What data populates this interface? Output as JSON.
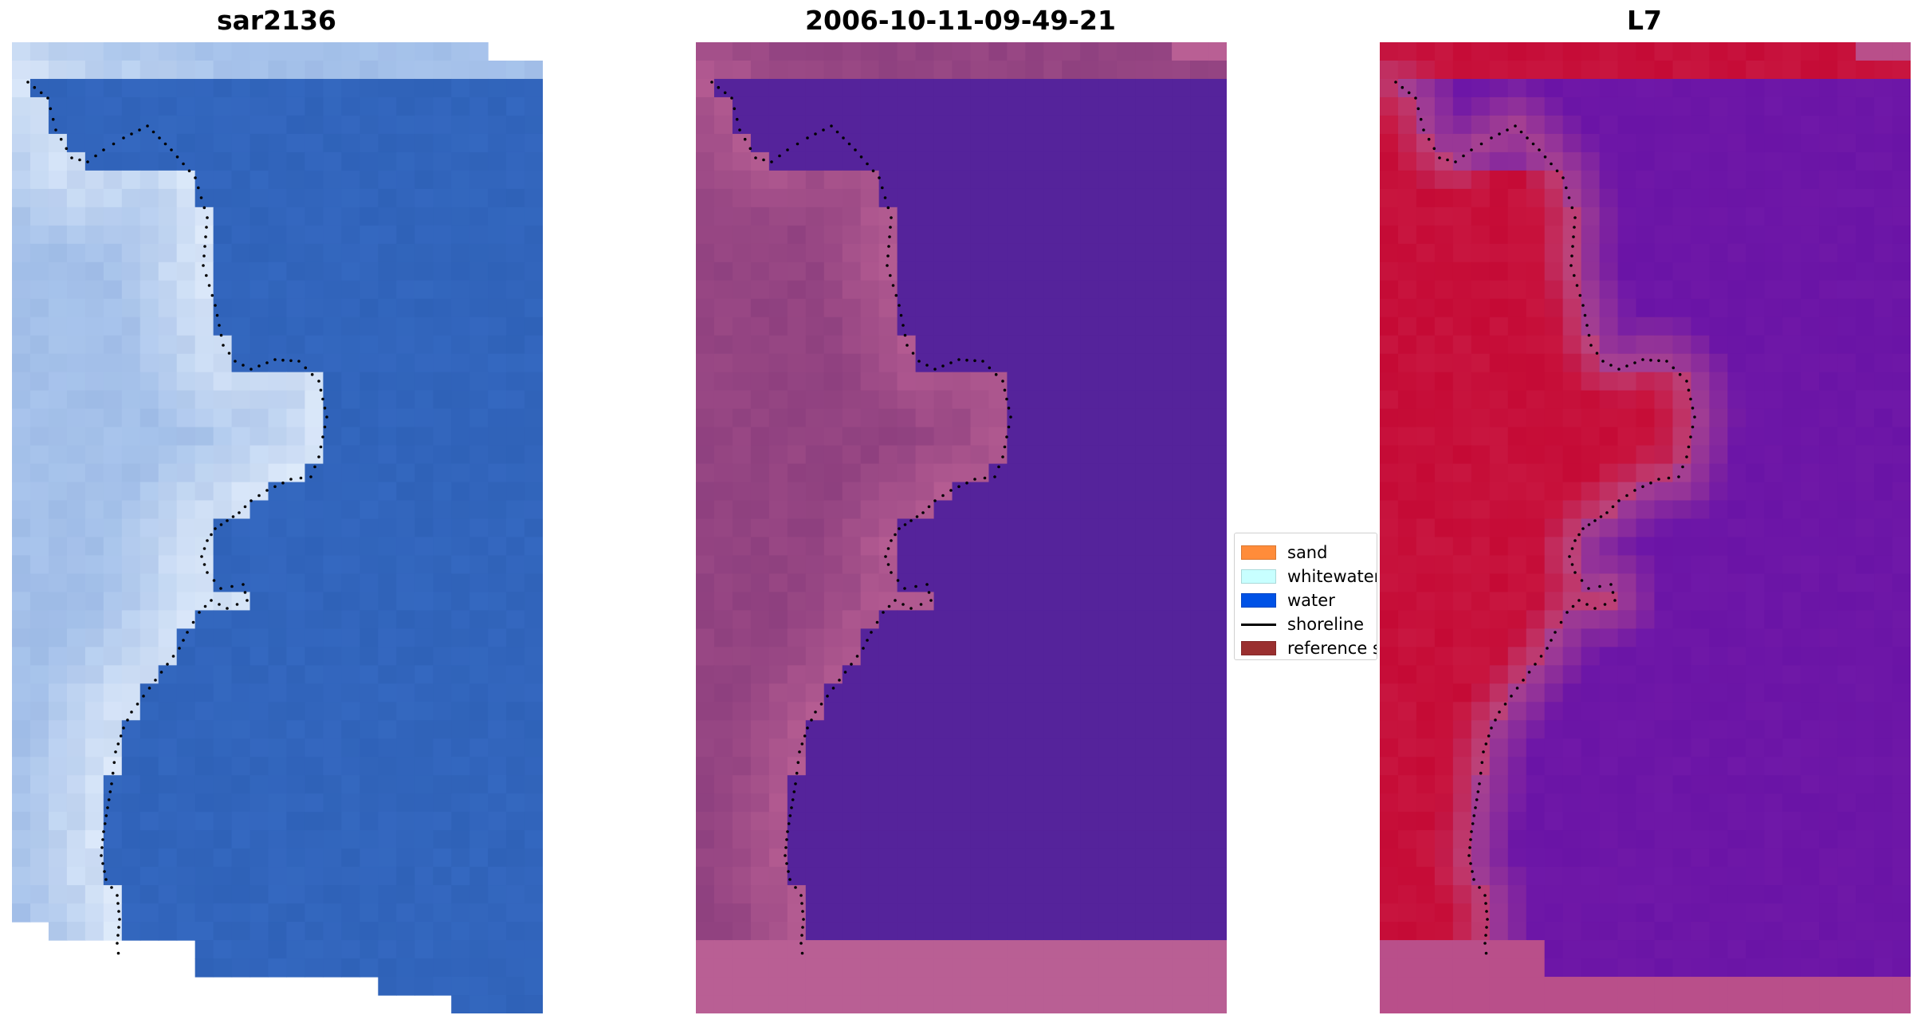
{
  "panels": [
    {
      "title": "sar2136",
      "kind": "rgb"
    },
    {
      "title": "2006-10-11-09-49-21",
      "kind": "classified"
    },
    {
      "title": "L7",
      "kind": "mndwi"
    }
  ],
  "legend": {
    "items": [
      {
        "label": "sand",
        "color": "#ff8c3a",
        "type": "patch"
      },
      {
        "label": "whitewater",
        "color": "#c8ffff",
        "type": "patch"
      },
      {
        "label": "water",
        "color": "#0052e6",
        "type": "patch"
      },
      {
        "label": "shoreline",
        "color": "#000000",
        "type": "line"
      },
      {
        "label": "reference s",
        "color": "#9a2f2f",
        "type": "patch"
      }
    ]
  },
  "colors": {
    "rgb_water": "#2f62b8",
    "rgb_land": "#a8c4ec",
    "rgb_bright": "#eef6ff",
    "class_water": "#55239b",
    "class_land": "#8e407f",
    "class_land_light": "#b95f94",
    "mndwi_land": "#c50a35",
    "mndwi_water": "#6a14a6",
    "mndwi_edge": "#b94f8a",
    "shoreline_dots": "#000000"
  }
}
